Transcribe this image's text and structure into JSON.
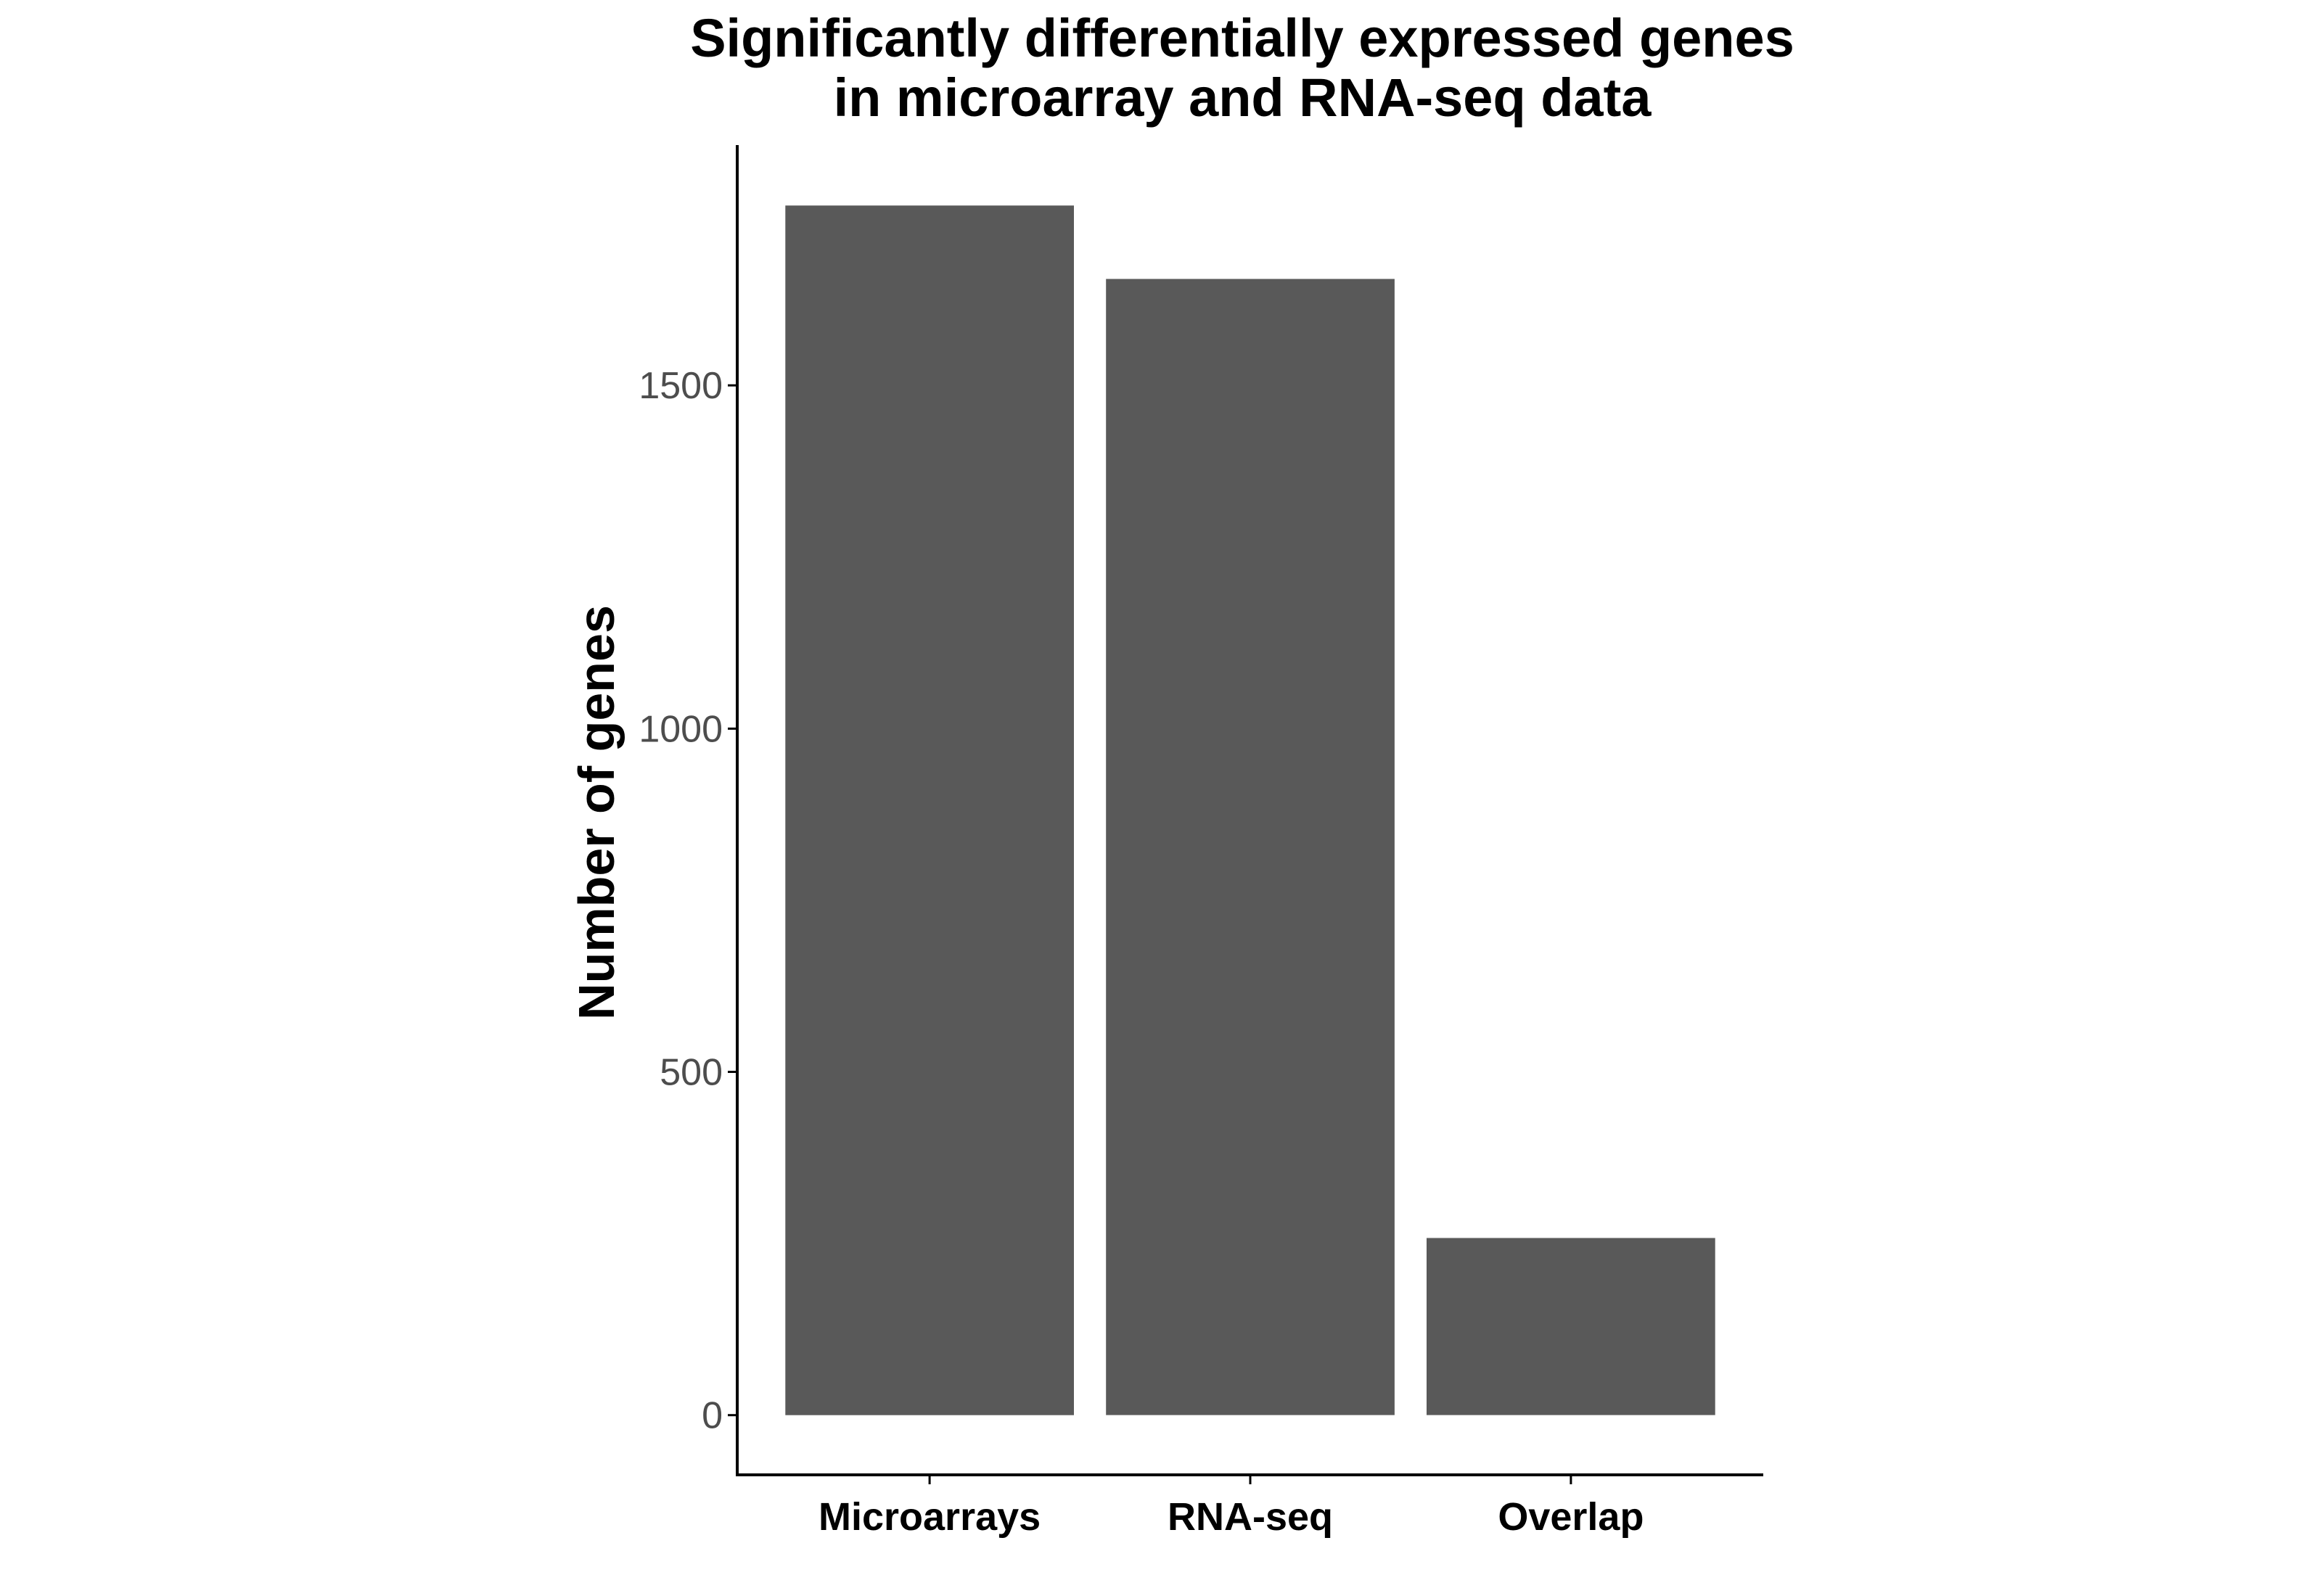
{
  "chart_data": {
    "type": "bar",
    "title_lines": [
      "Significantly differentially expressed genes",
      "in microarray and RNA-seq data"
    ],
    "xlabel": "",
    "ylabel": "Number of genes",
    "categories": [
      "Microarrays",
      "RNA-seq",
      "Overlap"
    ],
    "values": [
      1762,
      1655,
      258
    ],
    "ylim": [
      -87,
      1850
    ],
    "yticks": [
      0,
      500,
      1000,
      1500
    ],
    "ytick_labels": [
      "0",
      "500",
      "1000",
      "1500"
    ],
    "grid": false,
    "legend": "none",
    "colors": {
      "bar": "#595959",
      "axis": "#000000",
      "tick_text": "#4d4d4d"
    }
  }
}
